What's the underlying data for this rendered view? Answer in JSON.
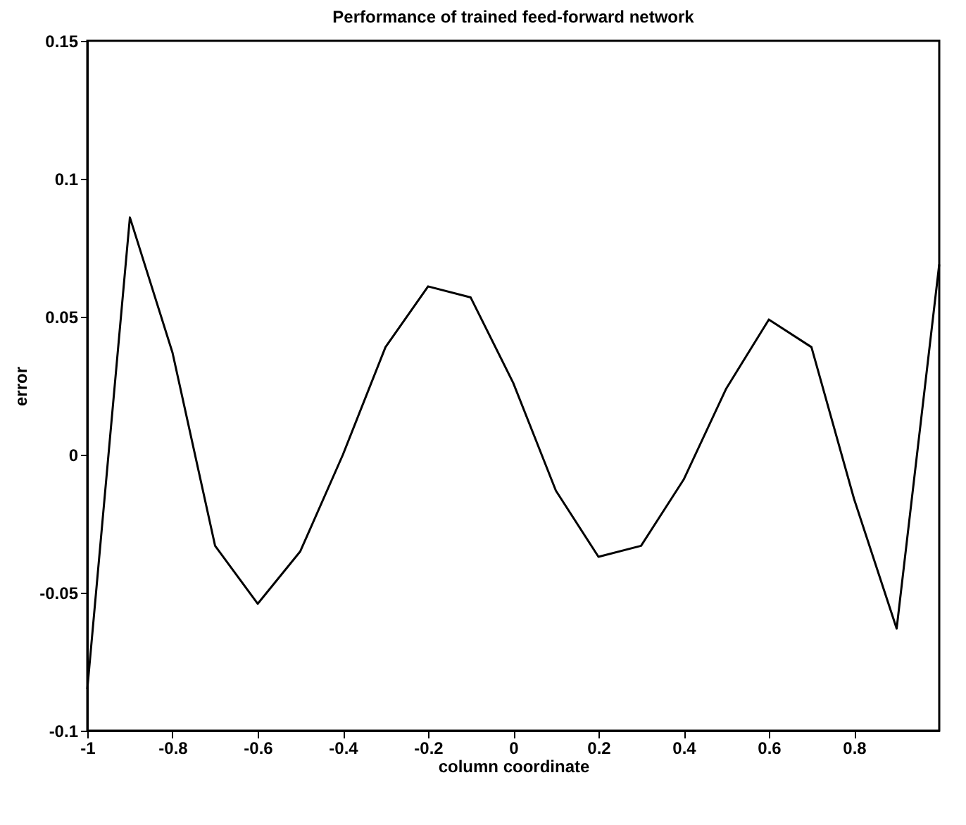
{
  "chart_data": {
    "type": "line",
    "title": "Performance of trained feed-forward network",
    "xlabel": "column coordinate",
    "ylabel": "error",
    "x": [
      -1,
      -0.9,
      -0.8,
      -0.7,
      -0.6,
      -0.5,
      -0.4,
      -0.3,
      -0.2,
      -0.1,
      0,
      0.1,
      0.2,
      0.3,
      0.4,
      0.5,
      0.6,
      0.7,
      0.8,
      0.9,
      1
    ],
    "series": [
      {
        "color": "#000000",
        "values": [
          -0.085,
          0.086,
          0.037,
          -0.033,
          -0.054,
          -0.035,
          0,
          0.039,
          0.061,
          0.057,
          0.026,
          -0.013,
          -0.037,
          -0.033,
          -0.009,
          0.024,
          0.049,
          0.039,
          -0.016,
          -0.063,
          0.069
        ]
      }
    ],
    "xlim": [
      -1,
      1
    ],
    "ylim": [
      -0.1,
      0.15
    ],
    "xticks": [
      -1,
      -0.8,
      -0.6,
      -0.4,
      -0.2,
      0,
      0.2,
      0.4,
      0.6,
      0.8
    ],
    "yticks": [
      -0.1,
      -0.05,
      0,
      0.05,
      0.1,
      0.15
    ],
    "grid": false,
    "legend": false,
    "marker": "none",
    "line_style": "solid"
  }
}
